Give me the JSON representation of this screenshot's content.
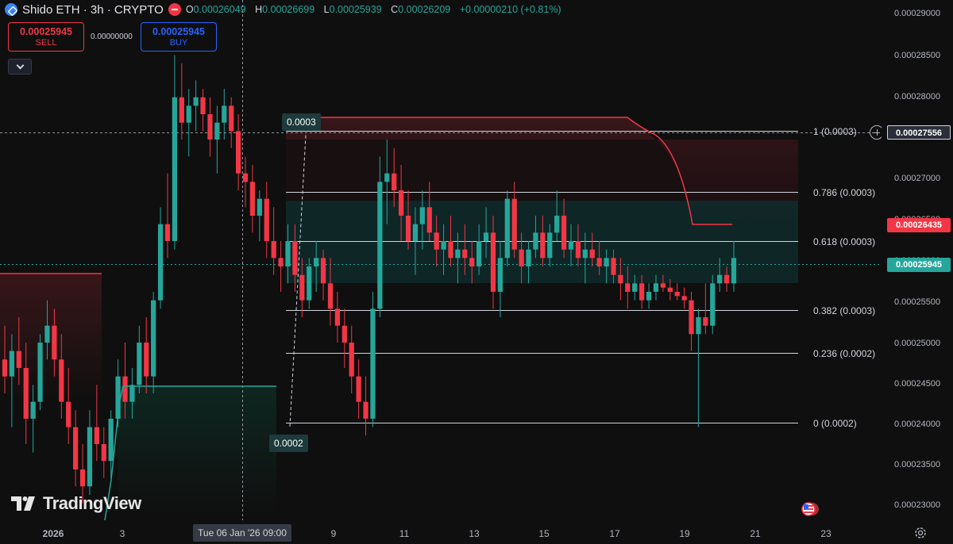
{
  "header": {
    "symbol_title": "Shido ETH · 3h · CRYPTO",
    "open_label": "O",
    "open_value": "0.00026049",
    "high_label": "H",
    "high_value": "0.00026699",
    "low_label": "L",
    "low_value": "0.00025939",
    "close_label": "C",
    "close_value": "0.00026209",
    "change_value": "+0.00000210 (+0.81%)"
  },
  "trade_panel": {
    "sell_price": "0.00025945",
    "sell_label": "SELL",
    "spread": "0.00000000",
    "buy_price": "0.00025945",
    "buy_label": "BUY"
  },
  "price_axis": {
    "ticks": [
      "0.00029000",
      "0.00028500",
      "0.00028000",
      "0.00027000",
      "0.00026500",
      "0.00026000",
      "0.00025500",
      "0.00025000",
      "0.00024500",
      "0.00024000",
      "0.00023500",
      "0.00023000"
    ],
    "crosshair_price": "0.00027556",
    "level_price": "0.00026435",
    "last_price": "0.00025945"
  },
  "time_axis": {
    "labels": [
      "2026",
      "3",
      "9",
      "11",
      "13",
      "15",
      "17",
      "19",
      "21",
      "23"
    ],
    "cursor_label": "Tue 06 Jan '26   09:00"
  },
  "fib_levels": [
    {
      "ratio": 1,
      "label": "1 (0.0003)",
      "price": 0.000275
    },
    {
      "ratio": 0.786,
      "label": "0.786 (0.0003)",
      "price": 0.0002678
    },
    {
      "ratio": 0.618,
      "label": "0.618 (0.0003)",
      "price": 0.000262
    },
    {
      "ratio": 0.382,
      "label": "0.382 (0.0003)",
      "price": 0.0002538
    },
    {
      "ratio": 0.236,
      "label": "0.236 (0.0002)",
      "price": 0.0002488
    },
    {
      "ratio": 0,
      "label": "0 (0.0002)",
      "price": 0.0002405
    }
  ],
  "callouts": {
    "high": "0.0003",
    "low": "0.0002"
  },
  "branding": {
    "logo_text": "TradingView"
  },
  "colors": {
    "up": "#26a69a",
    "down": "#f23645",
    "accent": "#2962ff",
    "background": "#0f0f0f"
  },
  "icons": [
    "symbol-icon",
    "remove-icon",
    "chevron-down-icon",
    "plus-circle-icon",
    "flag-icon",
    "settings-icon",
    "tradingview-logo-icon"
  ],
  "chart_data": {
    "type": "candlestick",
    "title": "Shido ETH · 3h · CRYPTO",
    "y_range": [
      0.000229,
      0.0002905
    ],
    "series": [
      {
        "name": "candles",
        "ohlc": [
          [
            0.000248,
            0.000252,
            0.000244,
            0.000246
          ],
          [
            0.000246,
            0.000251,
            0.00024,
            0.000249
          ],
          [
            0.000249,
            0.000253,
            0.000245,
            0.000247
          ],
          [
            0.000247,
            0.00025,
            0.000238,
            0.000241
          ],
          [
            0.000241,
            0.000245,
            0.000237,
            0.000243
          ],
          [
            0.000243,
            0.000251,
            0.000242,
            0.00025
          ],
          [
            0.00025,
            0.000255,
            0.000248,
            0.000252
          ],
          [
            0.000252,
            0.000254,
            0.000246,
            0.000248
          ],
          [
            0.000248,
            0.000251,
            0.000241,
            0.000243
          ],
          [
            0.000243,
            0.000247,
            0.000238,
            0.00024
          ],
          [
            0.00024,
            0.000242,
            0.000233,
            0.000235
          ],
          [
            0.000235,
            0.000238,
            0.000231,
            0.000233
          ],
          [
            0.000233,
            0.000242,
            0.000232,
            0.00024
          ],
          [
            0.00024,
            0.000245,
            0.000236,
            0.000238
          ],
          [
            0.000238,
            0.00024,
            0.000234,
            0.000236
          ],
          [
            0.000236,
            0.000242,
            0.000234,
            0.000241
          ],
          [
            0.000241,
            0.000248,
            0.00024,
            0.000246
          ],
          [
            0.000246,
            0.00025,
            0.000241,
            0.000243
          ],
          [
            0.000243,
            0.000247,
            0.000241,
            0.000245
          ],
          [
            0.000245,
            0.000252,
            0.000244,
            0.00025
          ],
          [
            0.00025,
            0.000253,
            0.000244,
            0.000246
          ],
          [
            0.000246,
            0.000256,
            0.000244,
            0.000255
          ],
          [
            0.000255,
            0.000266,
            0.000254,
            0.000264
          ],
          [
            0.000264,
            0.00027,
            0.00026,
            0.000262
          ],
          [
            0.000262,
            0.000284,
            0.000261,
            0.000279
          ],
          [
            0.000279,
            0.000283,
            0.000274,
            0.000276
          ],
          [
            0.000276,
            0.00028,
            0.000272,
            0.000278
          ],
          [
            0.000278,
            0.000281,
            0.000275,
            0.000279
          ],
          [
            0.000279,
            0.00028,
            0.000275,
            0.000277
          ],
          [
            0.000277,
            0.000279,
            0.000272,
            0.000274
          ],
          [
            0.000274,
            0.000278,
            0.00027,
            0.000276
          ],
          [
            0.000276,
            0.00028,
            0.000274,
            0.000278
          ],
          [
            0.000278,
            0.000279,
            0.000273,
            0.000275
          ],
          [
            0.000275,
            0.000277,
            0.000268,
            0.00027
          ],
          [
            0.00027,
            0.000272,
            0.000266,
            0.000269
          ],
          [
            0.000269,
            0.000271,
            0.000263,
            0.000265
          ],
          [
            0.000265,
            0.000268,
            0.000262,
            0.000267
          ],
          [
            0.000267,
            0.000269,
            0.00026,
            0.000262
          ],
          [
            0.000262,
            0.000266,
            0.000258,
            0.00026
          ],
          [
            0.00026,
            0.000262,
            0.000256,
            0.000259
          ],
          [
            0.000259,
            0.000264,
            0.000257,
            0.000262
          ],
          [
            0.000262,
            0.000264,
            0.000256,
            0.000258
          ],
          [
            0.000258,
            0.00026,
            0.000253,
            0.000255
          ],
          [
            0.000255,
            0.00026,
            0.000254,
            0.000259
          ],
          [
            0.000259,
            0.000262,
            0.000256,
            0.00026
          ],
          [
            0.00026,
            0.000261,
            0.000255,
            0.000257
          ],
          [
            0.000257,
            0.00026,
            0.000252,
            0.000254
          ],
          [
            0.000254,
            0.000256,
            0.00025,
            0.000252
          ],
          [
            0.000252,
            0.000254,
            0.000247,
            0.00025
          ],
          [
            0.00025,
            0.000252,
            0.000244,
            0.000246
          ],
          [
            0.000246,
            0.000248,
            0.000241,
            0.000243
          ],
          [
            0.000243,
            0.000246,
            0.000239,
            0.000241
          ],
          [
            0.000241,
            0.000256,
            0.00024,
            0.000254
          ],
          [
            0.000254,
            0.000272,
            0.000253,
            0.000269
          ],
          [
            0.000269,
            0.000274,
            0.000264,
            0.00027
          ],
          [
            0.00027,
            0.000273,
            0.000266,
            0.000268
          ],
          [
            0.000268,
            0.000271,
            0.000262,
            0.000265
          ],
          [
            0.000265,
            0.000268,
            0.000261,
            0.000262
          ],
          [
            0.000262,
            0.000266,
            0.000258,
            0.000264
          ],
          [
            0.000264,
            0.000268,
            0.000261,
            0.000266
          ],
          [
            0.000266,
            0.000269,
            0.000262,
            0.000263
          ],
          [
            0.000263,
            0.000265,
            0.000259,
            0.000261
          ],
          [
            0.000261,
            0.000264,
            0.000258,
            0.000262
          ],
          [
            0.000262,
            0.000265,
            0.000259,
            0.00026
          ],
          [
            0.00026,
            0.000263,
            0.000257,
            0.000261
          ],
          [
            0.000261,
            0.000264,
            0.000258,
            0.00026
          ],
          [
            0.00026,
            0.000262,
            0.000257,
            0.000259
          ],
          [
            0.000259,
            0.000264,
            0.000258,
            0.000262
          ],
          [
            0.000262,
            0.000266,
            0.00026,
            0.000263
          ],
          [
            0.000263,
            0.000265,
            0.000254,
            0.000256
          ],
          [
            0.000256,
            0.000262,
            0.000253,
            0.00026
          ],
          [
            0.00026,
            0.000268,
            0.000259,
            0.000267
          ],
          [
            0.000267,
            0.000269,
            0.00026,
            0.000261
          ],
          [
            0.000261,
            0.000263,
            0.000257,
            0.000259
          ],
          [
            0.000259,
            0.000262,
            0.000257,
            0.000261
          ],
          [
            0.000261,
            0.000265,
            0.00026,
            0.000263
          ],
          [
            0.000263,
            0.000265,
            0.000259,
            0.00026
          ],
          [
            0.00026,
            0.000264,
            0.000259,
            0.000263
          ],
          [
            0.000263,
            0.000268,
            0.000262,
            0.000265
          ],
          [
            0.000265,
            0.000267,
            0.00026,
            0.000261
          ],
          [
            0.000261,
            0.000264,
            0.000259,
            0.000262
          ],
          [
            0.000262,
            0.000264,
            0.000259,
            0.00026
          ],
          [
            0.00026,
            0.000263,
            0.000257,
            0.000261
          ],
          [
            0.000261,
            0.000263,
            0.000259,
            0.00026
          ],
          [
            0.00026,
            0.000262,
            0.000258,
            0.000259
          ],
          [
            0.000259,
            0.000261,
            0.000257,
            0.00026
          ],
          [
            0.00026,
            0.000261,
            0.000257,
            0.000258
          ],
          [
            0.000258,
            0.00026,
            0.000255,
            0.000257
          ],
          [
            0.000257,
            0.000259,
            0.000254,
            0.000256
          ],
          [
            0.000256,
            0.000258,
            0.000255,
            0.000257
          ],
          [
            0.000257,
            0.000258,
            0.000254,
            0.000255
          ],
          [
            0.000255,
            0.000257,
            0.000254,
            0.000256
          ],
          [
            0.000256,
            0.000258,
            0.000255,
            0.000257
          ],
          [
            0.000257,
            0.000258,
            0.000256,
            0.0002565
          ],
          [
            0.0002565,
            0.0002575,
            0.000255,
            0.000256
          ],
          [
            0.000256,
            0.000257,
            0.000255,
            0.0002555
          ],
          [
            0.0002555,
            0.0002565,
            0.000254,
            0.000255
          ],
          [
            0.000255,
            0.000256,
            0.000249,
            0.000251
          ],
          [
            0.000251,
            0.000254,
            0.00024,
            0.000253
          ],
          [
            0.000253,
            0.000257,
            0.000251,
            0.000252
          ],
          [
            0.000252,
            0.000258,
            0.000251,
            0.000257
          ],
          [
            0.000257,
            0.00026,
            0.000256,
            0.000258
          ],
          [
            0.000258,
            0.000259,
            0.000256,
            0.000257
          ],
          [
            0.000257,
            0.000262,
            0.000256,
            0.00026
          ]
        ]
      }
    ]
  }
}
